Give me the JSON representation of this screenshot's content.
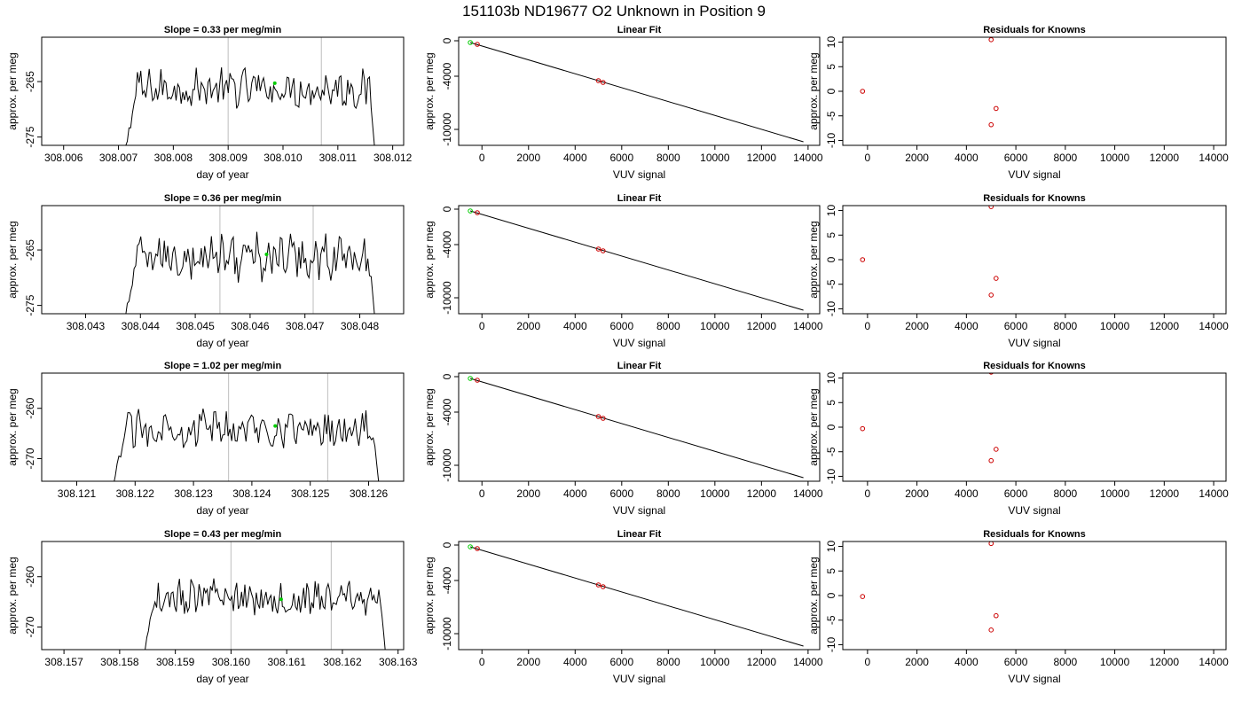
{
  "header": {
    "title": "151103b      ND19677    O2 Unknown in Position  9"
  },
  "colors": {
    "line": "#000000",
    "frame": "#000000",
    "marker_line": "#c8c8c8",
    "known_point": "#cc0000",
    "unknown_point": "#00cc00"
  },
  "panel_labels": {
    "time_x": "day of year",
    "time_y": "approx. per meg",
    "fit_title": "Linear Fit",
    "fit_x": "VUV signal",
    "fit_y": "approx. per meg",
    "resid_title": "Residuals for Knowns",
    "resid_x": "VUV signal",
    "resid_y": "approx. per meg"
  },
  "chart_data": [
    {
      "type": "line",
      "row": 1,
      "title": "Slope =  0.33  per meg/min",
      "xlabel": "day of year",
      "ylabel": "approx. per meg",
      "xlim": [
        308.0056,
        308.0122
      ],
      "ylim": [
        -276.5,
        -257
      ],
      "xticks": [
        "308.006",
        "308.007",
        "308.008",
        "308.009",
        "308.010",
        "308.011",
        "308.012"
      ],
      "yticks": [
        "-265",
        "-275"
      ],
      "window_start": 308.0071,
      "window_end": 308.0117,
      "amplitude": 3,
      "vertical_markers": [
        308.009,
        308.0107
      ],
      "mean_point": {
        "x": 308.00985,
        "y": -265.3
      },
      "trace_center": -266.3
    },
    {
      "type": "line",
      "row": 2,
      "title": "Slope =  0.36  per meg/min",
      "xlabel": "day of year",
      "ylabel": "approx. per meg",
      "xlim": [
        308.0422,
        308.0488
      ],
      "ylim": [
        -276.5,
        -257
      ],
      "xticks": [
        "308.043",
        "308.044",
        "308.045",
        "308.046",
        "308.047",
        "308.048"
      ],
      "yticks": [
        "-265",
        "-275"
      ],
      "window_start": 308.0437,
      "window_end": 308.0483,
      "amplitude": 3.5,
      "vertical_markers": [
        308.04545,
        308.04715
      ],
      "mean_point": {
        "x": 308.0463,
        "y": -265.8
      },
      "trace_center": -266.3
    },
    {
      "type": "line",
      "row": 3,
      "title": "Slope =  1.02  per meg/min",
      "xlabel": "day of year",
      "ylabel": "approx. per meg",
      "xlim": [
        308.1204,
        308.1266
      ],
      "ylim": [
        -274.5,
        -253
      ],
      "xticks": [
        "308.121",
        "308.122",
        "308.123",
        "308.124",
        "308.125",
        "308.126"
      ],
      "yticks": [
        "-260",
        "-270"
      ],
      "window_start": 308.1216,
      "window_end": 308.1262,
      "amplitude": 3,
      "vertical_markers": [
        308.1236,
        308.1253
      ],
      "mean_point": {
        "x": 308.1244,
        "y": -263.5
      },
      "trace_center": -264
    },
    {
      "type": "line",
      "row": 4,
      "title": "Slope =  0.43  per meg/min",
      "xlabel": "day of year",
      "ylabel": "approx. per meg",
      "xlim": [
        308.1566,
        308.1631
      ],
      "ylim": [
        -274.5,
        -253
      ],
      "xticks": [
        "308.157",
        "308.158",
        "308.159",
        "308.160",
        "308.161",
        "308.162",
        "308.163"
      ],
      "yticks": [
        "-260",
        "-270"
      ],
      "window_start": 308.1584,
      "window_end": 308.1628,
      "amplitude": 3,
      "vertical_markers": [
        308.16,
        308.1618
      ],
      "mean_point": {
        "x": 308.1609,
        "y": -264.5
      },
      "trace_center": -264.3
    },
    {
      "type": "scatter",
      "row": 1,
      "title": "Linear Fit",
      "xlabel": "VUV signal",
      "ylabel": "approx. per meg",
      "xlim": [
        -1000,
        14500
      ],
      "ylim": [
        -11800,
        400
      ],
      "xticks": [
        0,
        2000,
        4000,
        6000,
        8000,
        10000,
        12000,
        14000
      ],
      "yticks": [
        0,
        -4000,
        -10000
      ],
      "knowns": [
        {
          "x": -200,
          "y": -400
        },
        {
          "x": 5000,
          "y": -4500
        },
        {
          "x": 5200,
          "y": -4700
        }
      ],
      "unknowns": [
        {
          "x": -500,
          "y": -200
        }
      ],
      "fit_line": [
        {
          "x": -500,
          "y": -200
        },
        {
          "x": 13800,
          "y": -11400
        }
      ]
    },
    {
      "type": "scatter",
      "row": 2,
      "title": "Linear Fit",
      "xlabel": "VUV signal",
      "ylabel": "approx. per meg",
      "xlim": [
        -1000,
        14500
      ],
      "ylim": [
        -11800,
        400
      ],
      "xticks": [
        0,
        2000,
        4000,
        6000,
        8000,
        10000,
        12000,
        14000
      ],
      "yticks": [
        0,
        -4000,
        -10000
      ],
      "knowns": [
        {
          "x": -200,
          "y": -400
        },
        {
          "x": 5000,
          "y": -4500
        },
        {
          "x": 5200,
          "y": -4700
        }
      ],
      "unknowns": [
        {
          "x": -500,
          "y": -200
        }
      ],
      "fit_line": [
        {
          "x": -500,
          "y": -200
        },
        {
          "x": 13800,
          "y": -11400
        }
      ]
    },
    {
      "type": "scatter",
      "row": 3,
      "title": "Linear Fit",
      "xlabel": "VUV signal",
      "ylabel": "approx. per meg",
      "xlim": [
        -1000,
        14500
      ],
      "ylim": [
        -11800,
        400
      ],
      "xticks": [
        0,
        2000,
        4000,
        6000,
        8000,
        10000,
        12000,
        14000
      ],
      "yticks": [
        0,
        -4000,
        -10000
      ],
      "knowns": [
        {
          "x": -200,
          "y": -400
        },
        {
          "x": 5000,
          "y": -4500
        },
        {
          "x": 5200,
          "y": -4700
        }
      ],
      "unknowns": [
        {
          "x": -500,
          "y": -200
        }
      ],
      "fit_line": [
        {
          "x": -500,
          "y": -200
        },
        {
          "x": 13800,
          "y": -11400
        }
      ]
    },
    {
      "type": "scatter",
      "row": 4,
      "title": "Linear Fit",
      "xlabel": "VUV signal",
      "ylabel": "approx. per meg",
      "xlim": [
        -1000,
        14500
      ],
      "ylim": [
        -11800,
        400
      ],
      "xticks": [
        0,
        2000,
        4000,
        6000,
        8000,
        10000,
        12000,
        14000
      ],
      "yticks": [
        0,
        -4000,
        -10000
      ],
      "knowns": [
        {
          "x": -200,
          "y": -400
        },
        {
          "x": 5000,
          "y": -4500
        },
        {
          "x": 5200,
          "y": -4700
        }
      ],
      "unknowns": [
        {
          "x": -500,
          "y": -200
        }
      ],
      "fit_line": [
        {
          "x": -500,
          "y": -200
        },
        {
          "x": 13800,
          "y": -11400
        }
      ]
    },
    {
      "type": "scatter",
      "row": 1,
      "title": "Residuals for Knowns",
      "xlabel": "VUV signal",
      "ylabel": "approx. per meg",
      "xlim": [
        -1000,
        14500
      ],
      "ylim": [
        -11,
        11
      ],
      "xticks": [
        0,
        2000,
        4000,
        6000,
        8000,
        10000,
        12000,
        14000
      ],
      "yticks": [
        10,
        5,
        0,
        -5,
        -10
      ],
      "points": [
        {
          "x": -200,
          "y": 0
        },
        {
          "x": 5000,
          "y": 10.5
        },
        {
          "x": 5200,
          "y": -3.5
        },
        {
          "x": 5000,
          "y": -6.8
        }
      ]
    },
    {
      "type": "scatter",
      "row": 2,
      "title": "Residuals for Knowns",
      "xlabel": "VUV signal",
      "ylabel": "approx. per meg",
      "xlim": [
        -1000,
        14500
      ],
      "ylim": [
        -11,
        11
      ],
      "xticks": [
        0,
        2000,
        4000,
        6000,
        8000,
        10000,
        12000,
        14000
      ],
      "yticks": [
        10,
        5,
        0,
        -5,
        -10
      ],
      "points": [
        {
          "x": -200,
          "y": 0
        },
        {
          "x": 5000,
          "y": 10.8
        },
        {
          "x": 5200,
          "y": -3.8
        },
        {
          "x": 5000,
          "y": -7.2
        }
      ]
    },
    {
      "type": "scatter",
      "row": 3,
      "title": "Residuals for Knowns",
      "xlabel": "VUV signal",
      "ylabel": "approx. per meg",
      "xlim": [
        -1000,
        14500
      ],
      "ylim": [
        -11,
        11
      ],
      "xticks": [
        0,
        2000,
        4000,
        6000,
        8000,
        10000,
        12000,
        14000
      ],
      "yticks": [
        10,
        5,
        0,
        -5,
        -10
      ],
      "points": [
        {
          "x": -200,
          "y": -0.3
        },
        {
          "x": 5000,
          "y": 11.2
        },
        {
          "x": 5200,
          "y": -4.5
        },
        {
          "x": 5000,
          "y": -6.8
        }
      ]
    },
    {
      "type": "scatter",
      "row": 4,
      "title": "Residuals for Knowns",
      "xlabel": "VUV signal",
      "ylabel": "approx. per meg",
      "xlim": [
        -1000,
        14500
      ],
      "ylim": [
        -11,
        11
      ],
      "xticks": [
        0,
        2000,
        4000,
        6000,
        8000,
        10000,
        12000,
        14000
      ],
      "yticks": [
        10,
        5,
        0,
        -5,
        -10
      ],
      "points": [
        {
          "x": -200,
          "y": -0.2
        },
        {
          "x": 5000,
          "y": 10.6
        },
        {
          "x": 5200,
          "y": -4.1
        },
        {
          "x": 5000,
          "y": -7.0
        }
      ]
    }
  ]
}
